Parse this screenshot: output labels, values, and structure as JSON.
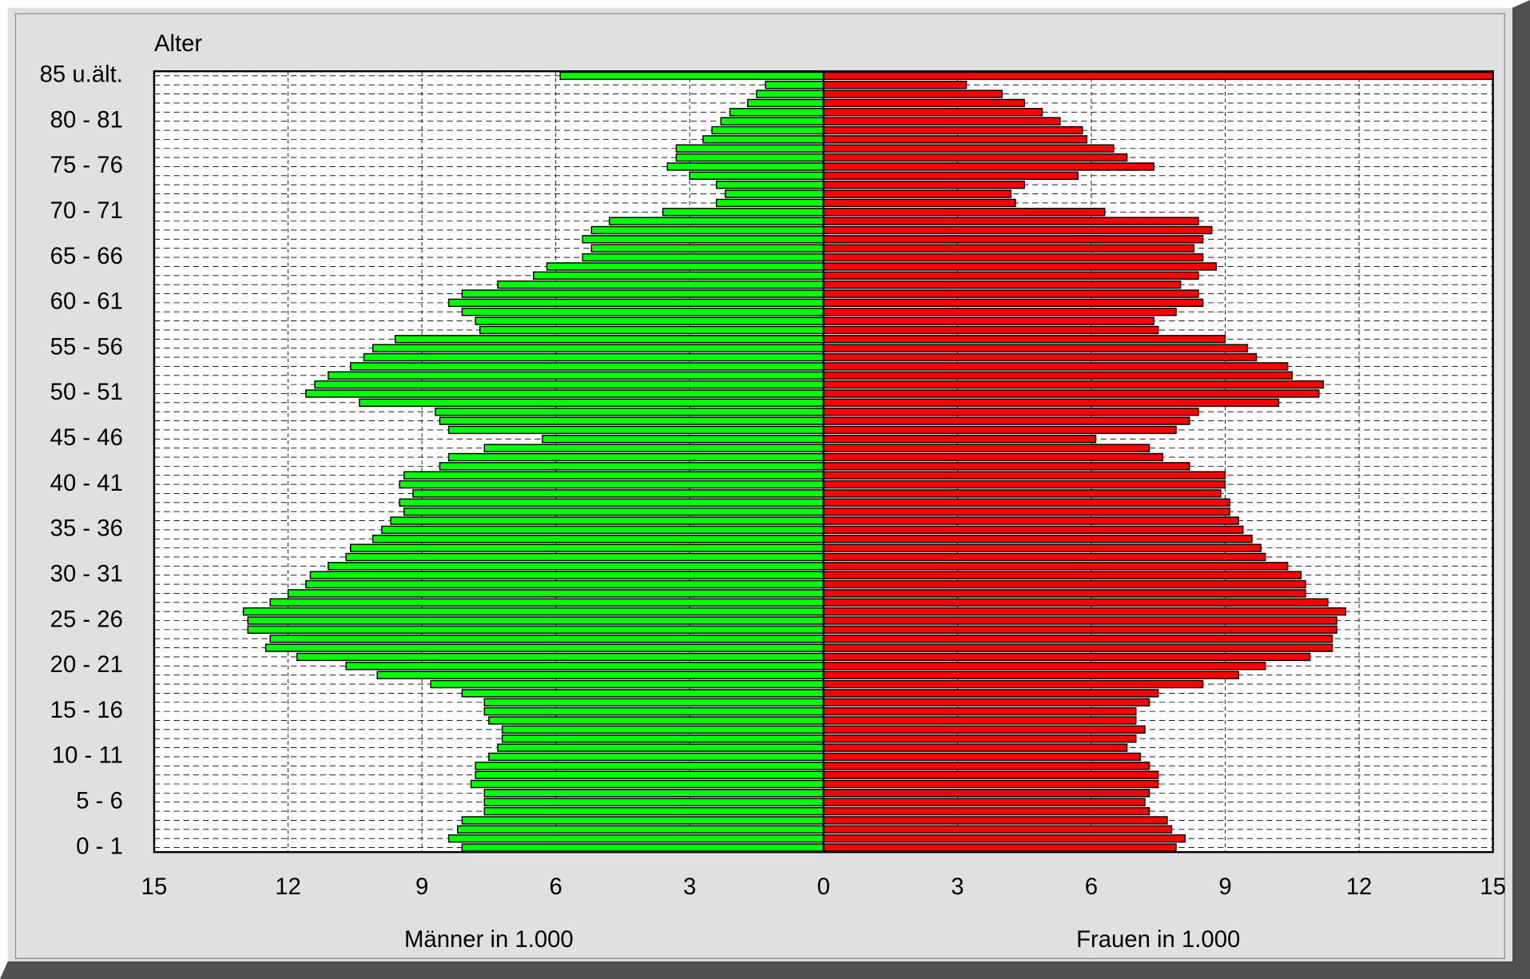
{
  "chart_data": {
    "type": "pyramid",
    "y_axis_label": "Alter",
    "categories": [
      "0 - 1",
      null,
      null,
      null,
      null,
      "5 - 6",
      null,
      null,
      null,
      null,
      "10 - 11",
      null,
      null,
      null,
      null,
      "15 - 16",
      null,
      null,
      null,
      null,
      "20 - 21",
      null,
      null,
      null,
      null,
      "25 - 26",
      null,
      null,
      null,
      null,
      "30 - 31",
      null,
      null,
      null,
      null,
      "35 - 36",
      null,
      null,
      null,
      null,
      "40 - 41",
      null,
      null,
      null,
      null,
      "45 - 46",
      null,
      null,
      null,
      null,
      "50 - 51",
      null,
      null,
      null,
      null,
      "55 - 56",
      null,
      null,
      null,
      null,
      "60 - 61",
      null,
      null,
      null,
      null,
      "65 - 66",
      null,
      null,
      null,
      null,
      "70 - 71",
      null,
      null,
      null,
      null,
      "75 - 76",
      null,
      null,
      null,
      null,
      "80 - 81",
      null,
      null,
      null,
      null,
      "85 u.ält."
    ],
    "series": [
      {
        "name": "Männer in 1.000",
        "side": "left",
        "color": "#00ff00",
        "values": [
          8.1,
          8.4,
          8.2,
          8.1,
          7.6,
          7.6,
          7.6,
          7.9,
          7.8,
          7.8,
          7.5,
          7.3,
          7.2,
          7.2,
          7.5,
          7.6,
          7.6,
          8.1,
          8.8,
          10.0,
          10.7,
          11.8,
          12.5,
          12.4,
          12.9,
          12.9,
          13.0,
          12.4,
          12.0,
          11.6,
          11.5,
          11.1,
          10.7,
          10.6,
          10.1,
          9.9,
          9.7,
          9.4,
          9.5,
          9.2,
          9.5,
          9.4,
          8.6,
          8.4,
          7.6,
          6.3,
          8.4,
          8.6,
          8.7,
          10.4,
          11.6,
          11.4,
          11.1,
          10.6,
          10.3,
          10.1,
          9.6,
          7.7,
          7.8,
          8.1,
          8.4,
          8.1,
          7.3,
          6.5,
          6.2,
          5.4,
          5.2,
          5.4,
          5.2,
          4.8,
          3.6,
          2.4,
          2.2,
          2.4,
          3.0,
          3.5,
          3.3,
          3.3,
          2.7,
          2.5,
          2.3,
          2.1,
          1.7,
          1.5,
          1.3,
          5.9
        ]
      },
      {
        "name": "Frauen in 1.000",
        "side": "right",
        "color": "#ff0000",
        "values": [
          7.9,
          8.1,
          7.8,
          7.7,
          7.3,
          7.2,
          7.3,
          7.5,
          7.5,
          7.3,
          7.1,
          6.8,
          7.0,
          7.2,
          7.0,
          7.0,
          7.3,
          7.5,
          8.5,
          9.3,
          9.9,
          10.9,
          11.4,
          11.4,
          11.5,
          11.5,
          11.7,
          11.3,
          10.8,
          10.8,
          10.7,
          10.4,
          9.9,
          9.8,
          9.6,
          9.4,
          9.3,
          9.1,
          9.1,
          8.9,
          9.0,
          9.0,
          8.2,
          7.6,
          7.3,
          6.1,
          7.9,
          8.2,
          8.4,
          10.2,
          11.1,
          11.2,
          10.5,
          10.4,
          9.7,
          9.5,
          9.0,
          7.5,
          7.4,
          7.9,
          8.5,
          8.4,
          8.0,
          8.4,
          8.8,
          8.5,
          8.3,
          8.5,
          8.7,
          8.4,
          6.3,
          4.3,
          4.2,
          4.5,
          5.7,
          7.4,
          6.8,
          6.5,
          5.9,
          5.8,
          5.3,
          4.9,
          4.5,
          4.0,
          3.2,
          15.0
        ]
      }
    ],
    "xlim": [
      0,
      15
    ],
    "xticks": [
      0,
      3,
      6,
      9,
      12,
      15
    ],
    "grid": true
  }
}
